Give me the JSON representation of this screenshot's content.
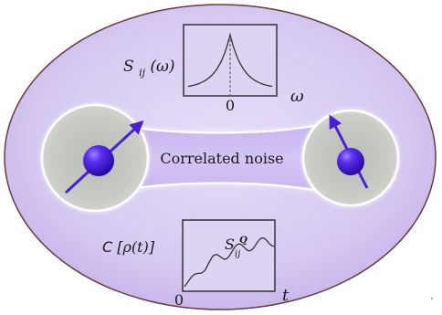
{
  "noise_channel": {
    "label": "Correlated noise"
  },
  "top_plot": {
    "ylabel": "S",
    "ylabel_sub": "ij",
    "ylabel_arg": "(ω)",
    "xlabel": "ω",
    "x_tick": "0"
  },
  "bottom_plot": {
    "ylabel_script": "C",
    "ylabel_arg": "[ρ(t)]",
    "xlabel": "t",
    "x_tick": "0",
    "annotation": "S",
    "annotation_sup": "Q",
    "annotation_sub": "ij"
  },
  "colors": {
    "outer_ellipse_fill": "#d8cdf2",
    "outer_ellipse_stroke": "#6b3a3a",
    "bubble_fill": "#c9ccc7",
    "spin_color": "#4a1fd6",
    "channel_fill": "#c7b8ee"
  },
  "icons": {
    "left_spin": "spin-arrow-icon",
    "right_spin": "spin-arrow-icon"
  }
}
